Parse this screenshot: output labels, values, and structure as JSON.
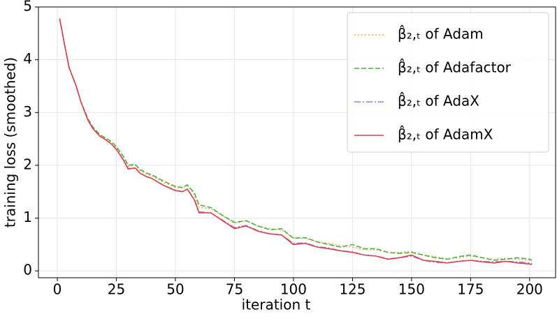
{
  "chart_data": {
    "type": "line",
    "xlabel": "iteration t",
    "ylabel": "training loss (smoothed)",
    "x": [
      1,
      3,
      5,
      8,
      10,
      13,
      15,
      18,
      20,
      23,
      25,
      28,
      30,
      33,
      35,
      38,
      40,
      45,
      50,
      53,
      55,
      58,
      60,
      65,
      70,
      75,
      80,
      85,
      90,
      95,
      100,
      105,
      110,
      115,
      120,
      125,
      130,
      135,
      140,
      145,
      150,
      155,
      160,
      165,
      170,
      175,
      180,
      185,
      190,
      195,
      200,
      201
    ],
    "series": [
      {
        "name": "β̂₂,ₜ of Adam",
        "color": "#f5a742",
        "values": [
          4.78,
          4.3,
          3.85,
          3.5,
          3.2,
          2.87,
          2.72,
          2.57,
          2.52,
          2.43,
          2.33,
          2.15,
          1.98,
          2.0,
          1.9,
          1.83,
          1.8,
          1.68,
          1.58,
          1.57,
          1.62,
          1.45,
          1.2,
          1.18,
          1.05,
          0.9,
          0.95,
          0.85,
          0.8,
          0.78,
          0.62,
          0.62,
          0.55,
          0.52,
          0.48,
          0.45,
          0.4,
          0.4,
          0.35,
          0.35,
          0.37,
          0.3,
          0.27,
          0.23,
          0.25,
          0.28,
          0.25,
          0.22,
          0.24,
          0.22,
          0.2,
          0.18
        ]
      },
      {
        "name": "β̂₂,ₜ of Adafactor",
        "color": "#4daf4a",
        "values": [
          4.78,
          4.3,
          3.85,
          3.5,
          3.2,
          2.88,
          2.73,
          2.58,
          2.53,
          2.45,
          2.35,
          2.17,
          2.0,
          2.02,
          1.92,
          1.85,
          1.82,
          1.7,
          1.6,
          1.58,
          1.63,
          1.48,
          1.25,
          1.2,
          1.05,
          0.92,
          0.95,
          0.85,
          0.78,
          0.8,
          0.62,
          0.63,
          0.55,
          0.5,
          0.45,
          0.5,
          0.42,
          0.42,
          0.35,
          0.33,
          0.35,
          0.3,
          0.25,
          0.22,
          0.27,
          0.3,
          0.25,
          0.2,
          0.22,
          0.25,
          0.22,
          0.2
        ]
      },
      {
        "name": "β̂₂,ₜ of AdaX",
        "color": "#a07cd0",
        "values": [
          4.78,
          4.3,
          3.85,
          3.5,
          3.2,
          2.85,
          2.7,
          2.55,
          2.5,
          2.4,
          2.3,
          2.1,
          1.94,
          1.95,
          1.85,
          1.78,
          1.75,
          1.62,
          1.53,
          1.5,
          1.55,
          1.36,
          1.12,
          1.1,
          0.96,
          0.82,
          0.86,
          0.76,
          0.7,
          0.68,
          0.52,
          0.53,
          0.46,
          0.43,
          0.38,
          0.36,
          0.3,
          0.28,
          0.23,
          0.25,
          0.28,
          0.2,
          0.16,
          0.15,
          0.18,
          0.2,
          0.18,
          0.17,
          0.18,
          0.17,
          0.15,
          0.14
        ]
      },
      {
        "name": "β̂₂,ₜ of AdamX",
        "color": "#d9434e",
        "values": [
          4.78,
          4.3,
          3.85,
          3.5,
          3.2,
          2.85,
          2.7,
          2.55,
          2.5,
          2.4,
          2.3,
          2.1,
          1.93,
          1.95,
          1.85,
          1.78,
          1.75,
          1.62,
          1.52,
          1.5,
          1.55,
          1.35,
          1.1,
          1.1,
          0.95,
          0.8,
          0.85,
          0.75,
          0.7,
          0.68,
          0.5,
          0.52,
          0.45,
          0.42,
          0.38,
          0.35,
          0.3,
          0.28,
          0.22,
          0.25,
          0.3,
          0.2,
          0.18,
          0.15,
          0.18,
          0.2,
          0.17,
          0.15,
          0.18,
          0.15,
          0.13,
          0.12
        ]
      }
    ],
    "xlim": [
      -8,
      211
    ],
    "ylim": [
      -0.13,
      5
    ],
    "xticks": [
      0,
      25,
      50,
      75,
      100,
      125,
      150,
      175,
      200
    ],
    "yticks": [
      0,
      1,
      2,
      3,
      4,
      5
    ],
    "grid": true,
    "legend": "upper right"
  }
}
